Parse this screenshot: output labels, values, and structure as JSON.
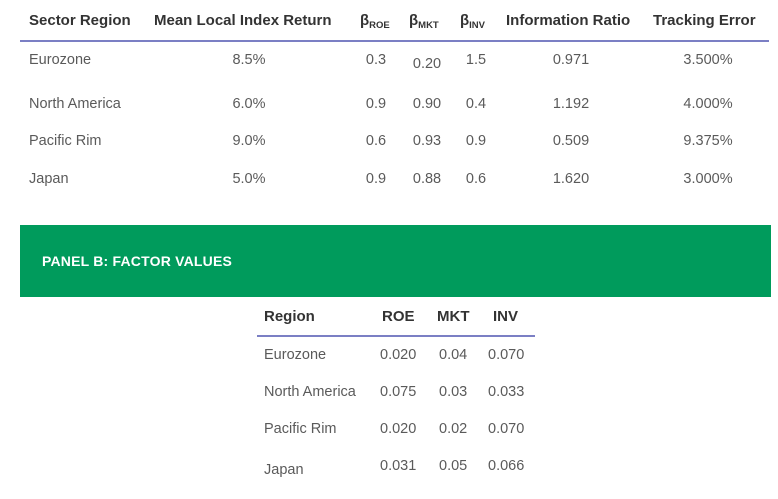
{
  "panel_a": {
    "headers": {
      "region": "Sector Region",
      "mean": "Mean Local Index Return",
      "beta_sym": "β",
      "roe_sub": "ROE",
      "mkt_sub": "MKT",
      "inv_sub": "INV",
      "ir": "Information Ratio",
      "te": "Tracking Error"
    },
    "rows": [
      {
        "region": "Eurozone",
        "mean": "8.5%",
        "b_roe": "0.3",
        "b_mkt": "0.20",
        "b_inv": "1.5",
        "ir": "0.971",
        "te": "3.500%"
      },
      {
        "region": "North America",
        "mean": "6.0%",
        "b_roe": "0.9",
        "b_mkt": "0.90",
        "b_inv": "0.4",
        "ir": "1.192",
        "te": "4.000%"
      },
      {
        "region": "Pacific Rim",
        "mean": "9.0%",
        "b_roe": "0.6",
        "b_mkt": "0.93",
        "b_inv": "0.9",
        "ir": "0.509",
        "te": "9.375%"
      },
      {
        "region": "Japan",
        "mean": "5.0%",
        "b_roe": "0.9",
        "b_mkt": "0.88",
        "b_inv": "0.6",
        "ir": "1.620",
        "te": "3.000%"
      }
    ]
  },
  "panel_b": {
    "title": "PANEL B: FACTOR VALUES",
    "headers": {
      "region": "Region",
      "roe": "ROE",
      "mkt": "MKT",
      "inv": "INV"
    },
    "rows": [
      {
        "region": "Eurozone",
        "roe": "0.020",
        "mkt": "0.04",
        "inv": "0.070"
      },
      {
        "region": "North America",
        "roe": "0.075",
        "mkt": "0.03",
        "inv": "0.033"
      },
      {
        "region": "Pacific Rim",
        "roe": "0.020",
        "mkt": "0.02",
        "inv": "0.070"
      },
      {
        "region": "Japan",
        "roe": "0.031",
        "mkt": "0.05",
        "inv": "0.066"
      }
    ]
  },
  "colors": {
    "panel_green": "#009b5c",
    "rule_blue": "#7b7fc4"
  }
}
